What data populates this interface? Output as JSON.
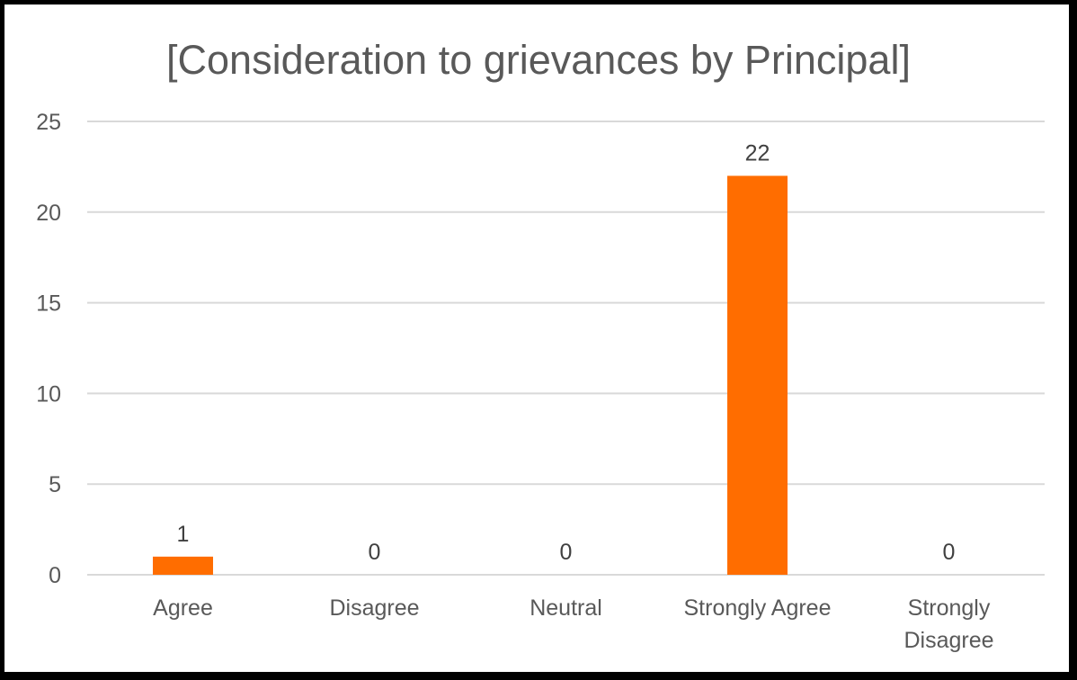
{
  "chart_data": {
    "type": "bar",
    "title": "[Consideration to grievances by Principal]",
    "categories": [
      "Agree",
      "Disagree",
      "Neutral",
      "Strongly Agree",
      "Strongly Disagree"
    ],
    "category_lines": [
      [
        "Agree"
      ],
      [
        "Disagree"
      ],
      [
        "Neutral"
      ],
      [
        "Strongly Agree"
      ],
      [
        "Strongly",
        "Disagree"
      ]
    ],
    "values": [
      1,
      0,
      0,
      22,
      0
    ],
    "data_labels": [
      "1",
      "0",
      "0",
      "22",
      "0"
    ],
    "y_ticks": [
      "0",
      "5",
      "10",
      "15",
      "20",
      "25"
    ],
    "ylim": [
      0,
      25
    ],
    "xlabel": "",
    "ylabel": "",
    "grid": true,
    "legend": "none",
    "bar_color": "#ff6d00",
    "grid_color": "#d9d9d9"
  }
}
